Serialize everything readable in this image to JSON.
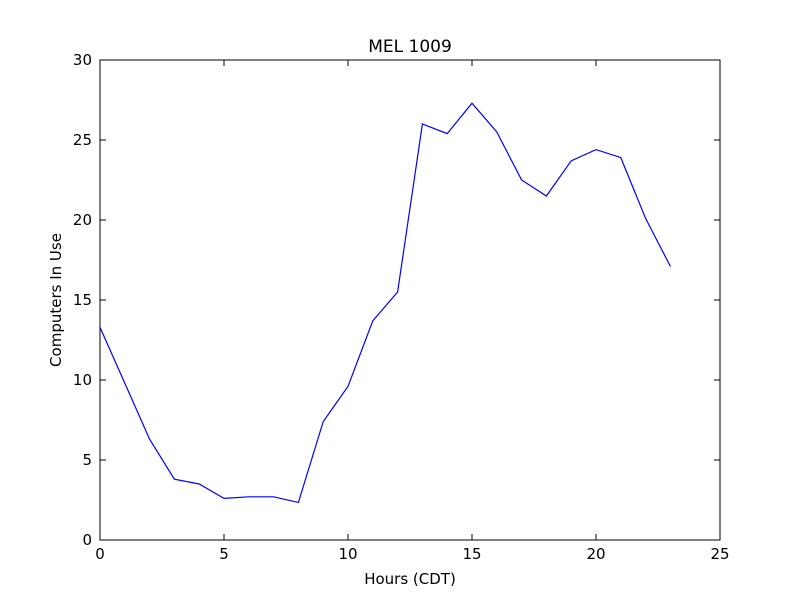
{
  "chart_data": {
    "type": "line",
    "title": "MEL 1009",
    "xlabel": "Hours (CDT)",
    "ylabel": "Computers In Use",
    "xlim": [
      0,
      25
    ],
    "ylim": [
      0,
      30
    ],
    "xticks": [
      0,
      5,
      10,
      15,
      20,
      25
    ],
    "yticks": [
      0,
      5,
      10,
      15,
      20,
      25,
      30
    ],
    "grid": false,
    "series": [
      {
        "color": "#0000ff",
        "x": [
          0,
          1,
          2,
          3,
          4,
          5,
          6,
          7,
          8,
          9,
          10,
          11,
          12,
          13,
          14,
          15,
          16,
          17,
          18,
          19,
          20,
          21,
          22,
          23
        ],
        "y": [
          13.3,
          9.8,
          6.3,
          3.8,
          3.5,
          2.6,
          2.7,
          2.7,
          2.35,
          7.4,
          9.6,
          13.7,
          15.5,
          26.0,
          25.4,
          27.3,
          25.5,
          22.5,
          21.5,
          23.7,
          24.4,
          23.9,
          20.1,
          17.1
        ]
      }
    ]
  }
}
